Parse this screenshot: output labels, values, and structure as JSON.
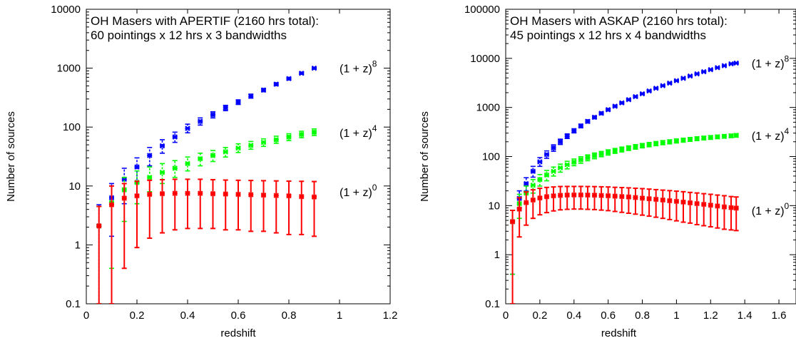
{
  "chart_data": [
    {
      "type": "scatter",
      "title_lines": [
        "OH Masers with APERTIF (2160 hrs total):",
        "60 pointings x 12 hrs x 3 bandwidths"
      ],
      "xlabel": "redshift",
      "ylabel": "Number of sources",
      "xlim": [
        0,
        1.2
      ],
      "ylim": [
        0.1,
        10000
      ],
      "yscale": "log",
      "x_ticks": [
        0,
        0.2,
        0.4,
        0.6,
        0.8,
        1,
        1.2
      ],
      "x_tick_labels": [
        "0",
        "0.2",
        "0.4",
        "0.6",
        "0.8",
        "1",
        "1.2"
      ],
      "y_ticks": [
        0.1,
        1,
        10,
        100,
        1000,
        10000
      ],
      "y_tick_labels": [
        "0.1",
        "1",
        "10",
        "100",
        "1000",
        "10000"
      ],
      "grid": false,
      "series": [
        {
          "label_base": "(1 + z)",
          "label_exp": "8",
          "label_anchor": [
            1.0,
            1000
          ],
          "color": "#0000ff",
          "points": [
            [
              0.05,
              2.1,
              0.1,
              4.8
            ],
            [
              0.1,
              6.3,
              1.4,
              11
            ],
            [
              0.15,
              13,
              5,
              20
            ],
            [
              0.2,
              21,
              11,
              30
            ],
            [
              0.25,
              33,
              22,
              45
            ],
            [
              0.3,
              48,
              36,
              61
            ],
            [
              0.35,
              68,
              55,
              82
            ],
            [
              0.4,
              95,
              80,
              112
            ],
            [
              0.45,
              125,
              108,
              143
            ],
            [
              0.5,
              162,
              143,
              182
            ],
            [
              0.55,
              212,
              190,
              234
            ],
            [
              0.6,
              265,
              242,
              290
            ],
            [
              0.65,
              335,
              310,
              362
            ],
            [
              0.7,
              425,
              398,
              453
            ],
            [
              0.75,
              535,
              505,
              566
            ],
            [
              0.8,
              665,
              630,
              700
            ],
            [
              0.85,
              820,
              785,
              857
            ],
            [
              0.9,
              1000,
              960,
              1040
            ]
          ]
        },
        {
          "label_base": "(1 + z)",
          "label_exp": "4",
          "label_anchor": [
            1.0,
            80
          ],
          "color": "#00ff00",
          "points": [
            [
              0.05,
              2.1,
              0.1,
              4.5
            ],
            [
              0.1,
              5.2,
              0.4,
              10
            ],
            [
              0.15,
              8.6,
              2.5,
              14
            ],
            [
              0.2,
              11.5,
              5,
              18
            ],
            [
              0.25,
              14,
              8,
              21
            ],
            [
              0.3,
              17,
              11,
              24
            ],
            [
              0.35,
              20,
              14,
              27
            ],
            [
              0.4,
              24,
              18,
              31
            ],
            [
              0.45,
              29,
              22,
              36
            ],
            [
              0.5,
              33,
              26,
              40
            ],
            [
              0.55,
              38,
              31,
              45
            ],
            [
              0.6,
              44,
              37,
              52
            ],
            [
              0.65,
              49,
              42,
              57
            ],
            [
              0.7,
              55,
              47,
              63
            ],
            [
              0.75,
              61,
              53,
              70
            ],
            [
              0.8,
              68,
              59,
              77
            ],
            [
              0.85,
              75,
              66,
              85
            ],
            [
              0.9,
              82,
              72,
              93
            ]
          ]
        },
        {
          "label_base": "(1 + z)",
          "label_exp": "0",
          "label_anchor": [
            1.0,
            8
          ],
          "color": "#ff0000",
          "points": [
            [
              0.05,
              2.1,
              0.1,
              4.5
            ],
            [
              0.1,
              4.8,
              0.1,
              10
            ],
            [
              0.15,
              6.2,
              0.4,
              11
            ],
            [
              0.2,
              6.8,
              0.9,
              12
            ],
            [
              0.25,
              7.2,
              1.3,
              12.5
            ],
            [
              0.3,
              7.4,
              1.6,
              12.8
            ],
            [
              0.35,
              7.5,
              1.8,
              13
            ],
            [
              0.4,
              7.5,
              1.9,
              13
            ],
            [
              0.45,
              7.5,
              1.9,
              13
            ],
            [
              0.5,
              7.4,
              1.9,
              12.8
            ],
            [
              0.55,
              7.3,
              1.8,
              12.6
            ],
            [
              0.6,
              7.2,
              1.8,
              12.5
            ],
            [
              0.65,
              7.1,
              1.7,
              12.4
            ],
            [
              0.7,
              7,
              1.7,
              12.3
            ],
            [
              0.75,
              6.9,
              1.6,
              12.2
            ],
            [
              0.8,
              6.8,
              1.5,
              12.1
            ],
            [
              0.85,
              6.6,
              1.5,
              12
            ],
            [
              0.9,
              6.5,
              1.4,
              11.9
            ]
          ]
        }
      ]
    },
    {
      "type": "scatter",
      "title_lines": [
        "OH Masers with ASKAP (2160 hrs total):",
        "45 pointings x 12 hrs x 4 bandwidths"
      ],
      "xlabel": "redshift",
      "ylabel": "Number of sources",
      "xlim": [
        0,
        1.7
      ],
      "ylim": [
        0.1,
        100000
      ],
      "yscale": "log",
      "x_ticks": [
        0,
        0.2,
        0.4,
        0.6,
        0.8,
        1,
        1.2,
        1.4,
        1.6
      ],
      "x_tick_labels": [
        "0",
        "0.2",
        "0.4",
        "0.6",
        "0.8",
        "1",
        "1.2",
        "1.4",
        "1.6"
      ],
      "y_ticks": [
        0.1,
        1,
        10,
        100,
        1000,
        10000,
        100000
      ],
      "y_tick_labels": [
        "0.1",
        "1",
        "10",
        "100",
        "1000",
        "10000",
        "100000"
      ],
      "grid": false,
      "series": [
        {
          "label_base": "(1 + z)",
          "label_exp": "8",
          "label_anchor": [
            1.44,
            8000
          ],
          "color": "#0000ff",
          "points": [
            [
              0.04,
              4.7,
              0.4,
              8
            ],
            [
              0.08,
              14,
              9,
              20
            ],
            [
              0.12,
              28,
              20,
              37
            ],
            [
              0.16,
              50,
              38,
              63
            ],
            [
              0.2,
              78,
              63,
              95
            ],
            [
              0.24,
              110,
              92,
              130
            ],
            [
              0.28,
              150,
              128,
              173
            ],
            [
              0.32,
              200,
              176,
              226
            ],
            [
              0.36,
              260,
              233,
              289
            ],
            [
              0.4,
              335,
              303,
              368
            ],
            [
              0.44,
              420,
              385,
              457
            ],
            [
              0.48,
              520,
              481,
              561
            ],
            [
              0.52,
              630,
              587,
              675
            ],
            [
              0.56,
              760,
              712,
              810
            ],
            [
              0.6,
              900,
              848,
              954
            ],
            [
              0.64,
              1060,
              1003,
              1119
            ],
            [
              0.68,
              1240,
              1178,
              1304
            ],
            [
              0.72,
              1440,
              1373,
              1509
            ],
            [
              0.76,
              1660,
              1588,
              1734
            ],
            [
              0.8,
              1900,
              1823,
              1979
            ],
            [
              0.84,
              2170,
              2087,
              2255
            ],
            [
              0.88,
              2460,
              2371,
              2551
            ],
            [
              0.92,
              2780,
              2684,
              2878
            ],
            [
              0.96,
              3130,
              3028,
              3234
            ],
            [
              1,
              3510,
              3402,
              3620
            ],
            [
              1.04,
              3920,
              3806,
              4036
            ],
            [
              1.08,
              4360,
              4240,
              4482
            ],
            [
              1.12,
              4830,
              4703,
              4959
            ],
            [
              1.16,
              5340,
              5206,
              5476
            ],
            [
              1.2,
              5880,
              5740,
              6022
            ],
            [
              1.24,
              6460,
              6314,
              6608
            ],
            [
              1.28,
              7080,
              6927,
              7235
            ],
            [
              1.32,
              7740,
              7580,
              7902
            ],
            [
              1.35,
              8000,
              7837,
              8165
            ]
          ]
        },
        {
          "label_base": "(1 + z)",
          "label_exp": "4",
          "label_anchor": [
            1.44,
            270
          ],
          "color": "#00ff00",
          "points": [
            [
              0.04,
              4.7,
              0.4,
              8
            ],
            [
              0.08,
              11,
              5.5,
              17
            ],
            [
              0.12,
              18,
              11,
              25
            ],
            [
              0.16,
              26,
              18,
              34
            ],
            [
              0.2,
              34,
              25,
              43
            ],
            [
              0.24,
              42,
              32,
              52
            ],
            [
              0.28,
              50,
              40,
              61
            ],
            [
              0.32,
              59,
              48,
              70
            ],
            [
              0.36,
              68,
              56,
              80
            ],
            [
              0.4,
              77,
              65,
              89
            ],
            [
              0.44,
              86,
              73,
              99
            ],
            [
              0.48,
              95,
              82,
              108
            ],
            [
              0.52,
              104,
              90,
              118
            ],
            [
              0.56,
              113,
              99,
              127
            ],
            [
              0.6,
              122,
              107,
              137
            ],
            [
              0.64,
              131,
              116,
              146
            ],
            [
              0.68,
              140,
              124,
              156
            ],
            [
              0.72,
              149,
              133,
              165
            ],
            [
              0.76,
              158,
              141,
              175
            ],
            [
              0.8,
              167,
              150,
              184
            ],
            [
              0.84,
              175,
              158,
              193
            ],
            [
              0.88,
              184,
              166,
              202
            ],
            [
              0.92,
              192,
              174,
              211
            ],
            [
              0.96,
              200,
              181,
              219
            ],
            [
              1,
              208,
              189,
              228
            ],
            [
              1.04,
              216,
              196,
              236
            ],
            [
              1.08,
              224,
              204,
              244
            ],
            [
              1.12,
              231,
              211,
              252
            ],
            [
              1.16,
              238,
              218,
              259
            ],
            [
              1.2,
              245,
              224,
              266
            ],
            [
              1.24,
              252,
              231,
              273
            ],
            [
              1.28,
              258,
              237,
              280
            ],
            [
              1.32,
              264,
              243,
              286
            ],
            [
              1.35,
              270,
              248,
              292
            ]
          ]
        },
        {
          "label_base": "(1 + z)",
          "label_exp": "0",
          "label_anchor": [
            1.44,
            8
          ],
          "color": "#ff0000",
          "points": [
            [
              0.04,
              4.7,
              0.1,
              8
            ],
            [
              0.08,
              8.5,
              2.3,
              14.5
            ],
            [
              0.12,
              11.5,
              4,
              19
            ],
            [
              0.16,
              13,
              5.5,
              21
            ],
            [
              0.2,
              14.3,
              6.5,
              22.5
            ],
            [
              0.24,
              15.2,
              7.2,
              23.5
            ],
            [
              0.28,
              15.8,
              7.8,
              24
            ],
            [
              0.32,
              16.2,
              8.2,
              24.5
            ],
            [
              0.36,
              16.4,
              8.4,
              24.6
            ],
            [
              0.4,
              16.5,
              8.5,
              24.6
            ],
            [
              0.44,
              16.5,
              8.5,
              24.6
            ],
            [
              0.48,
              16.4,
              8.4,
              24.5
            ],
            [
              0.52,
              16.3,
              8.3,
              24.4
            ],
            [
              0.56,
              16.1,
              8.1,
              24.2
            ],
            [
              0.6,
              15.9,
              7.9,
              24
            ],
            [
              0.64,
              15.6,
              7.6,
              23.6
            ],
            [
              0.68,
              15.3,
              7.3,
              23.3
            ],
            [
              0.72,
              15,
              7,
              23
            ],
            [
              0.76,
              14.6,
              6.7,
              22.6
            ],
            [
              0.8,
              14.2,
              6.4,
              22.2
            ],
            [
              0.84,
              13.8,
              6.1,
              21.7
            ],
            [
              0.88,
              13.4,
              5.8,
              21.2
            ],
            [
              0.92,
              13,
              5.5,
              20.7
            ],
            [
              0.96,
              12.6,
              5.2,
              20.2
            ],
            [
              1,
              12.2,
              4.9,
              19.7
            ],
            [
              1.04,
              11.8,
              4.6,
              19.2
            ],
            [
              1.08,
              11.4,
              4.4,
              18.6
            ],
            [
              1.12,
              11,
              4.1,
              18.1
            ],
            [
              1.16,
              10.6,
              3.9,
              17.5
            ],
            [
              1.2,
              10.2,
              3.7,
              17
            ],
            [
              1.24,
              9.8,
              3.5,
              16.4
            ],
            [
              1.28,
              9.4,
              3.3,
              15.9
            ],
            [
              1.32,
              9.1,
              3.2,
              15.3
            ],
            [
              1.35,
              8.9,
              3.1,
              15
            ]
          ]
        }
      ]
    }
  ]
}
